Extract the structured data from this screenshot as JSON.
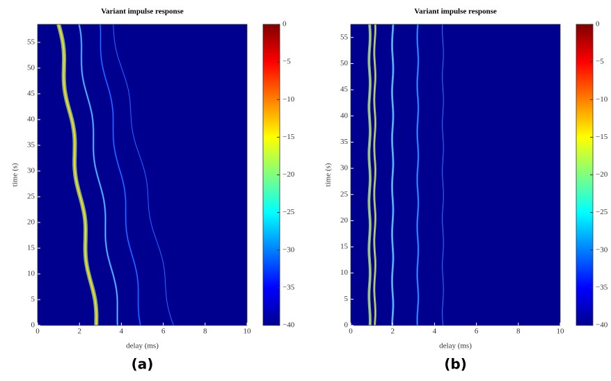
{
  "chart_data": [
    {
      "type": "heatmap",
      "title": "Variant impulse response",
      "xlabel": "delay (ms)",
      "ylabel": "time (s)",
      "xlim": [
        0,
        10
      ],
      "xticks": [
        0,
        2,
        4,
        6,
        8,
        10
      ],
      "ylim": [
        0,
        58.5
      ],
      "yticks": [
        0,
        5,
        10,
        15,
        20,
        25,
        30,
        35,
        40,
        45,
        50,
        55
      ],
      "clim": [
        -40,
        0
      ],
      "cticks": [
        0,
        {
          "value": -5,
          "label": "−5"
        },
        {
          "value": -10,
          "label": "−10"
        },
        {
          "value": -15,
          "label": "−15"
        },
        {
          "value": -20,
          "label": "−20"
        },
        {
          "value": -25,
          "label": "−25"
        },
        {
          "value": -30,
          "label": "−30"
        },
        {
          "value": -35,
          "label": "−35"
        },
        {
          "value": -40,
          "label": "−40"
        }
      ],
      "caption": "(a)"
    },
    {
      "type": "heatmap",
      "title": "Variant impulse response",
      "xlabel": "delay (ms)",
      "ylabel": "time (s)",
      "xlim": [
        0,
        10
      ],
      "xticks": [
        0,
        2,
        4,
        6,
        8,
        10
      ],
      "ylim": [
        0,
        57.5
      ],
      "yticks": [
        0,
        5,
        10,
        15,
        20,
        25,
        30,
        35,
        40,
        45,
        50,
        55
      ],
      "clim": [
        -40,
        0
      ],
      "cticks": [
        0,
        {
          "value": -5,
          "label": "−5"
        },
        {
          "value": -10,
          "label": "−10"
        },
        {
          "value": -15,
          "label": "−15"
        },
        {
          "value": -20,
          "label": "−20"
        },
        {
          "value": -25,
          "label": "−25"
        },
        {
          "value": -30,
          "label": "−30"
        },
        {
          "value": -35,
          "label": "−35"
        },
        {
          "value": -40,
          "label": "−40"
        }
      ],
      "caption": "(b)"
    }
  ]
}
